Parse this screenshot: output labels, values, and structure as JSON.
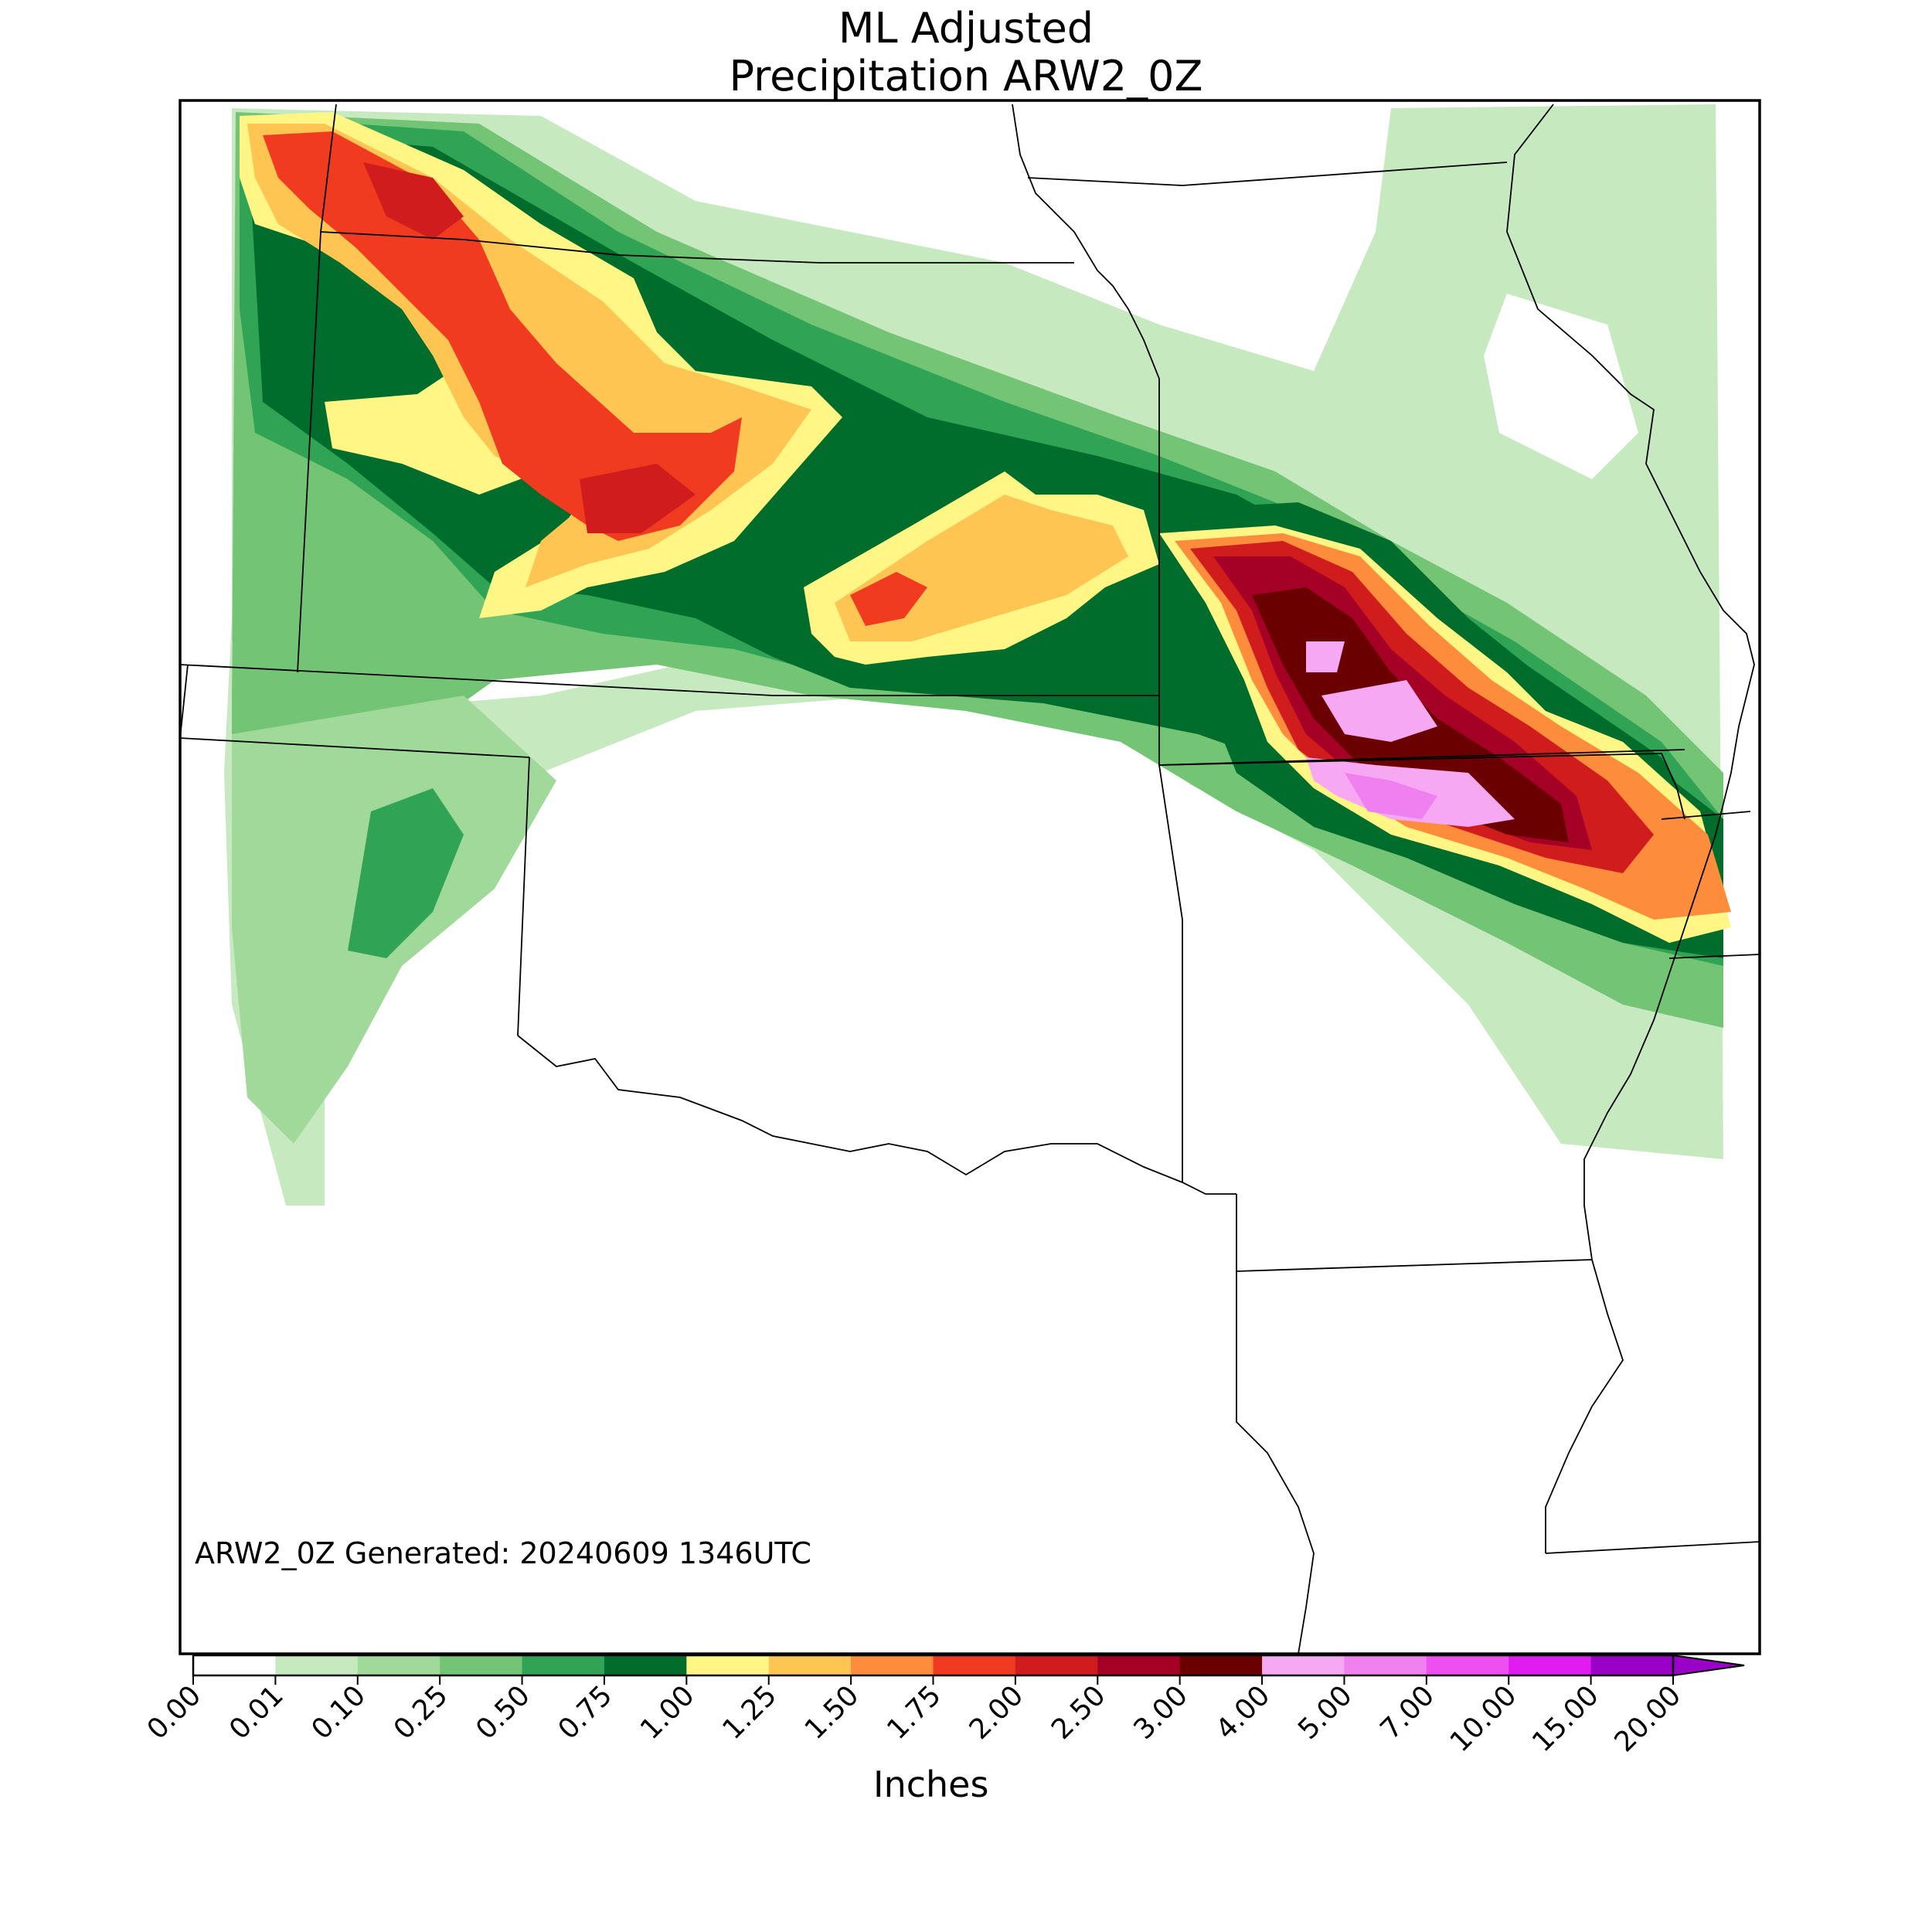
{
  "title": {
    "line1": "ML Adjusted",
    "line2": "Precipitation ARW2_0Z"
  },
  "stamp": "ARW2_0Z Generated: 20240609 1346UTC",
  "colorbar": {
    "label": "Inches",
    "ticks": [
      "0.00",
      "0.01",
      "0.10",
      "0.25",
      "0.50",
      "0.75",
      "1.00",
      "1.25",
      "1.50",
      "1.75",
      "2.00",
      "2.50",
      "3.00",
      "4.00",
      "5.00",
      "7.00",
      "10.00",
      "15.00",
      "20.00"
    ],
    "colors": [
      "#ffffff",
      "#c7e9c0",
      "#a1d99b",
      "#74c476",
      "#31a354",
      "#006d2c",
      "#fff685",
      "#ffc553",
      "#fd8d3c",
      "#f03b20",
      "#d01c1c",
      "#a50026",
      "#6b0000",
      "#f7a8f2",
      "#f07ff0",
      "#ed4ff0",
      "#e01cf0",
      "#9b00c8"
    ],
    "extend": "max"
  },
  "legend_colors": {
    "light_green": "#c7e9c0",
    "mid_green": "#74c476",
    "dark_green": "#006d2c",
    "yellow": "#fff685",
    "orange": "#fd8d3c",
    "red": "#d01c1c",
    "maroon": "#6b0000",
    "pink": "#f07ff0"
  }
}
